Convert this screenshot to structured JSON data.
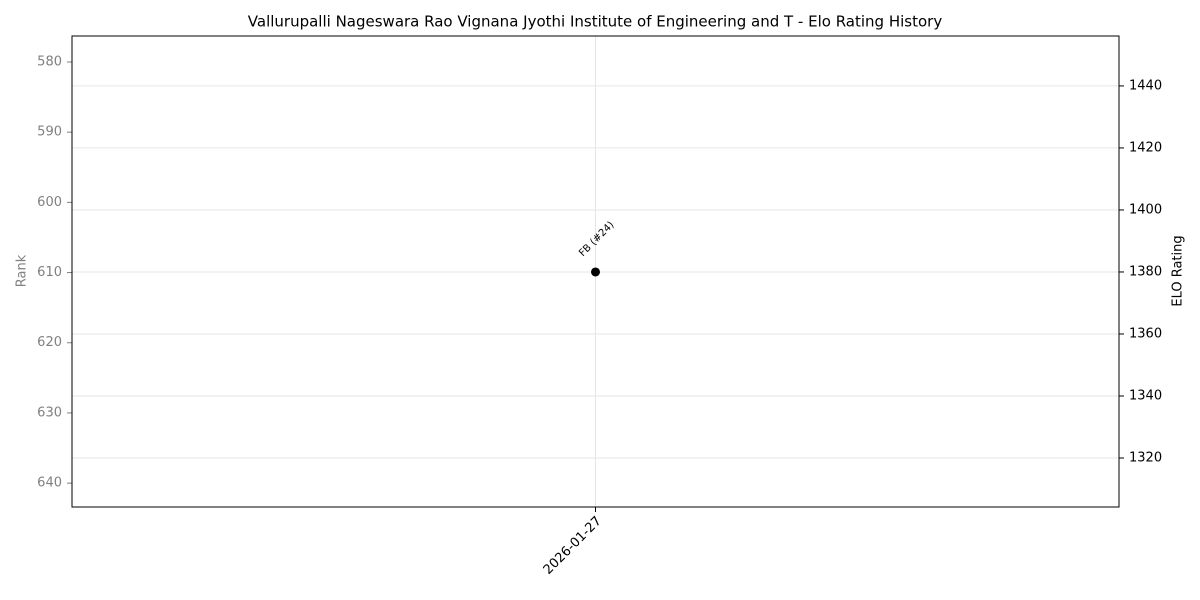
{
  "chart_data": {
    "type": "line",
    "title": "Vallurupalli Nageswara Rao Vignana Jyothi Institute of Engineering and T - Elo Rating History",
    "categories": [
      "2026-01-27"
    ],
    "series": [
      {
        "color": "#000000",
        "values": [
          1380
        ],
        "axis": "y2",
        "value_labels": [
          "FB (#24)"
        ]
      }
    ],
    "ylabel": "Rank",
    "y2label": "ELO Rating",
    "ylim": [
      643.4,
      576.3
    ],
    "yticks": [
      580,
      590,
      600,
      610,
      620,
      630,
      640
    ],
    "y_inverted": true,
    "y2lim": [
      1304.2,
      1456.1
    ],
    "y2ticks": [
      1320,
      1340,
      1360,
      1380,
      1400,
      1420,
      1440
    ],
    "grid": true
  }
}
